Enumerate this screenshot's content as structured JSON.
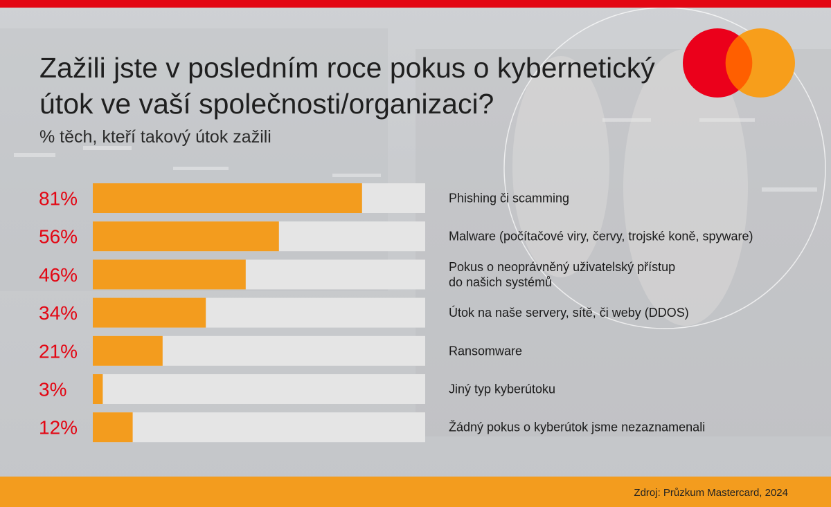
{
  "title": "Zažili jste v posledním roce pokus o kybernetický útok ve vaší společnosti/organizaci?",
  "subtitle": "% těch, kteří takový útok zažili",
  "source": "Zdroj: Průzkum Mastercard, 2024",
  "colors": {
    "brand_red": "#e30613",
    "bar_fill": "#f39c1e",
    "bar_track": "#e5e5e5",
    "logo_red": "#eb001b",
    "logo_orange": "#f79e1b",
    "logo_overlap": "#ff5f00"
  },
  "chart_data": {
    "type": "bar",
    "orientation": "horizontal",
    "xlim": [
      0,
      100
    ],
    "categories": [
      "Phishing či scamming",
      "Malware (počítačové viry, červy, trojské koně, spyware)",
      "Pokus o neoprávněný uživatelský přístup\ndo našich systémů",
      "Útok na naše servery, sítě, či weby (DDOS)",
      "Ransomware",
      "Jiný typ kyberútoku",
      "Žádný pokus o kyberútok jsme nezaznamenali"
    ],
    "values": [
      81,
      56,
      46,
      34,
      21,
      3,
      12
    ],
    "value_labels": [
      "81%",
      "56%",
      "46%",
      "34%",
      "21%",
      "3%",
      "12%"
    ]
  }
}
